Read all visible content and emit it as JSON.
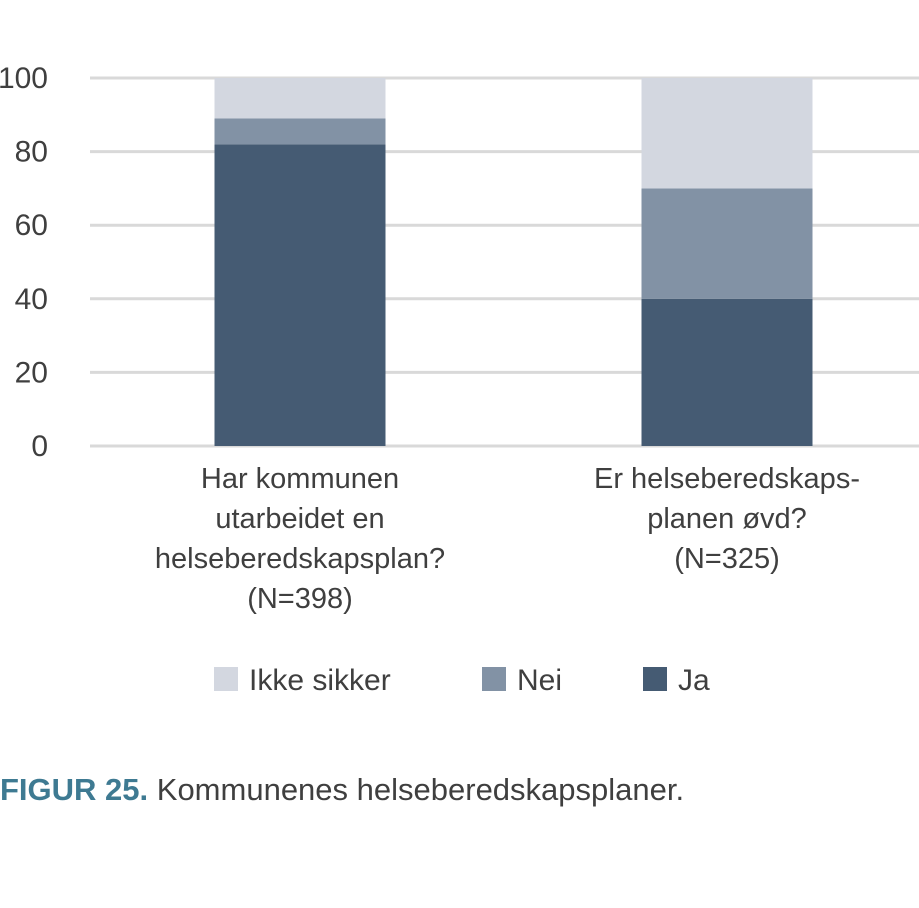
{
  "chart_data": {
    "type": "bar",
    "stacked": true,
    "categories": [
      [
        "Har kommunen",
        "utarbeidet en",
        "helseberedskapsplan?",
        "(N=398)"
      ],
      [
        "Er helseberedskaps-",
        "planen øvd?",
        "(N=325)"
      ]
    ],
    "series": [
      {
        "name": "Ja",
        "values": [
          82,
          40
        ],
        "color": "#455b73"
      },
      {
        "name": "Nei",
        "values": [
          7,
          30
        ],
        "color": "#8292a5"
      },
      {
        "name": "Ikke sikker",
        "values": [
          11,
          30
        ],
        "color": "#d3d7e0"
      }
    ],
    "legend_order": [
      "Ikke sikker",
      "Nei",
      "Ja"
    ],
    "ylim": [
      0,
      100
    ],
    "yticks": [
      0,
      20,
      40,
      60,
      80,
      100
    ],
    "grid": true,
    "grid_color": "#d9d9d9",
    "legend_position": "bottom"
  },
  "caption": {
    "label": "FIGUR 25.",
    "text": " Kommunenes helseberedskapsplaner."
  }
}
